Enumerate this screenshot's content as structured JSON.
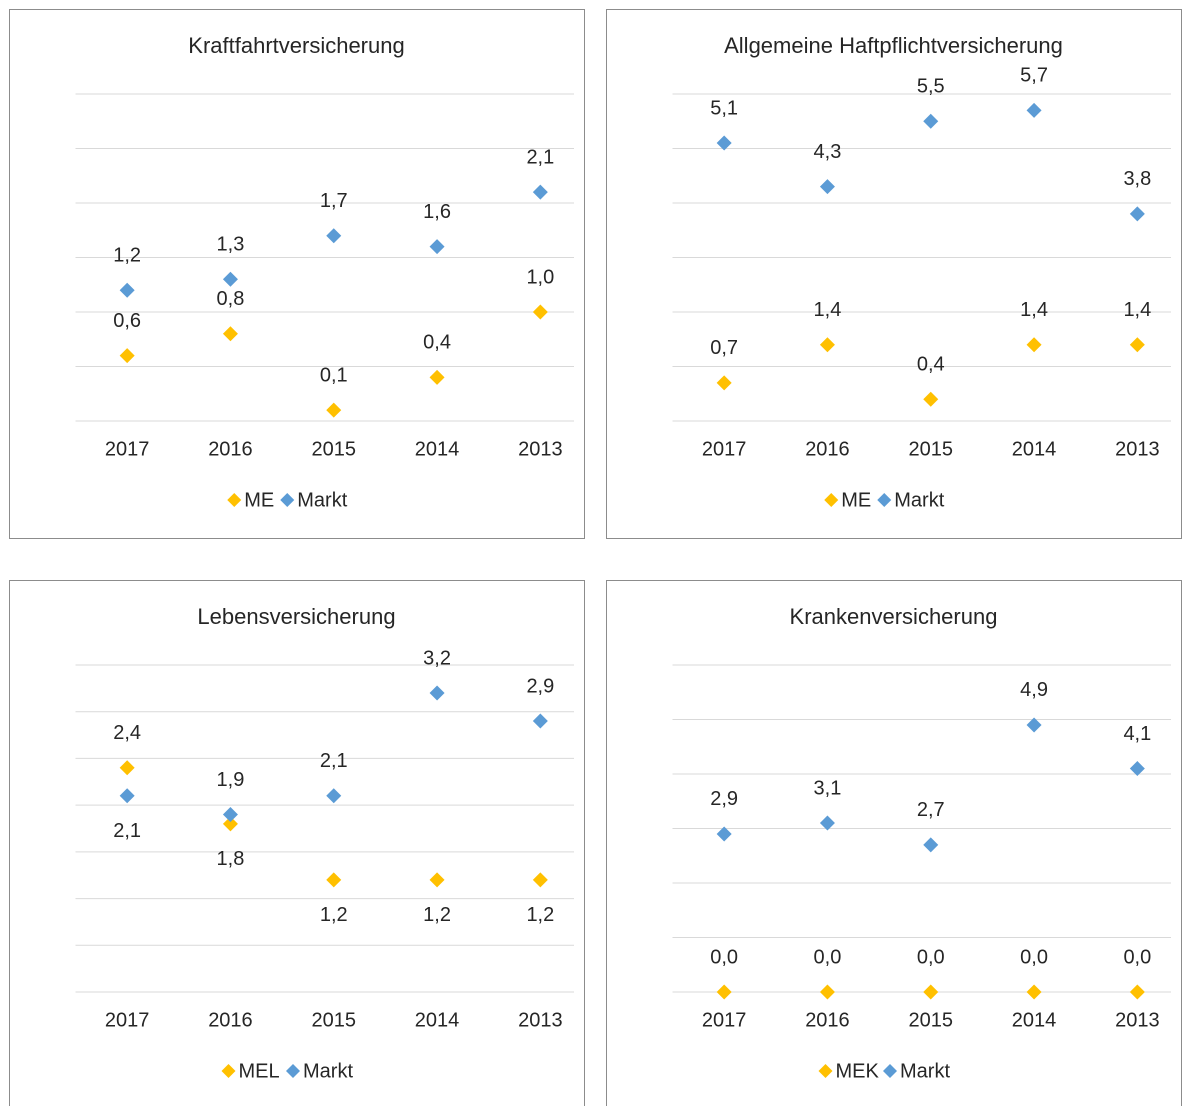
{
  "chart_data": [
    {
      "type": "scatter",
      "title": "Kraftfahrtversicherung",
      "categories": [
        "2017",
        "2016",
        "2015",
        "2014",
        "2013"
      ],
      "series": [
        {
          "name": "ME",
          "color": "#FFC000",
          "values": [
            0.6,
            0.8,
            0.1,
            0.4,
            1.0
          ],
          "value_labels": [
            "0,6",
            "0,8",
            "0,1",
            "0,4",
            "1,0"
          ]
        },
        {
          "name": "Markt",
          "color": "#5B9BD5",
          "values": [
            1.2,
            1.3,
            1.7,
            1.6,
            2.1
          ],
          "value_labels": [
            "1,2",
            "1,3",
            "1,7",
            "1,6",
            "2,1"
          ]
        }
      ],
      "ylim": [
        0,
        3
      ],
      "yticks": [
        0,
        0.5,
        1,
        1.5,
        2,
        2.5,
        3
      ],
      "grid": true,
      "legend": "bottom"
    },
    {
      "type": "scatter",
      "title": "Allgemeine Haftpflichtversicherung",
      "categories": [
        "2017",
        "2016",
        "2015",
        "2014",
        "2013"
      ],
      "series": [
        {
          "name": "ME",
          "color": "#FFC000",
          "values": [
            0.7,
            1.4,
            0.4,
            1.4,
            1.4
          ],
          "value_labels": [
            "0,7",
            "1,4",
            "0,4",
            "1,4",
            "1,4"
          ]
        },
        {
          "name": "Markt",
          "color": "#5B9BD5",
          "values": [
            5.1,
            4.3,
            5.5,
            5.7,
            3.8
          ],
          "value_labels": [
            "5,1",
            "4,3",
            "5,5",
            "5,7",
            "3,8"
          ]
        }
      ],
      "ylim": [
        0,
        6
      ],
      "yticks": [
        0,
        1,
        2,
        3,
        4,
        5,
        6
      ],
      "grid": true,
      "legend": "bottom"
    },
    {
      "type": "scatter",
      "title": "Lebensversicherung",
      "categories": [
        "2017",
        "2016",
        "2015",
        "2014",
        "2013"
      ],
      "series": [
        {
          "name": "MEL",
          "color": "#FFC000",
          "values": [
            2.4,
            1.8,
            1.2,
            1.2,
            1.2
          ],
          "value_labels": [
            "2,4",
            "1,8",
            "1,2",
            "1,2",
            "1,2"
          ]
        },
        {
          "name": "Markt",
          "color": "#5B9BD5",
          "values": [
            2.1,
            1.9,
            2.1,
            3.2,
            2.9
          ],
          "value_labels": [
            "2,1",
            "1,9",
            "2,1",
            "3,2",
            "2,9"
          ]
        }
      ],
      "ylim": [
        0,
        3.5
      ],
      "yticks": [
        0,
        0.5,
        1,
        1.5,
        2,
        2.5,
        3,
        3.5
      ],
      "grid": true,
      "legend": "bottom"
    },
    {
      "type": "scatter",
      "title": "Krankenversicherung",
      "categories": [
        "2017",
        "2016",
        "2015",
        "2014",
        "2013"
      ],
      "series": [
        {
          "name": "MEK",
          "color": "#FFC000",
          "values": [
            0,
            0,
            0,
            0,
            0
          ],
          "value_labels": [
            "0,0",
            "0,0",
            "0,0",
            "0,0",
            "0,0"
          ]
        },
        {
          "name": "Markt",
          "color": "#5B9BD5",
          "values": [
            2.9,
            3.1,
            2.7,
            4.9,
            4.1
          ],
          "value_labels": [
            "2,9",
            "3,1",
            "2,7",
            "4,9",
            "4,1"
          ]
        }
      ],
      "ylim": [
        0,
        6
      ],
      "yticks": [
        0,
        1,
        2,
        3,
        4,
        5,
        6
      ],
      "grid": true,
      "legend": "bottom"
    }
  ]
}
